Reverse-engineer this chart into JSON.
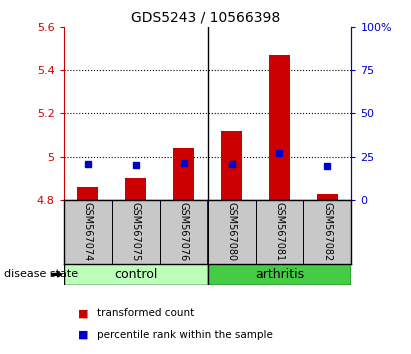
{
  "title": "GDS5243 / 10566398",
  "samples": [
    "GSM567074",
    "GSM567075",
    "GSM567076",
    "GSM567080",
    "GSM567081",
    "GSM567082"
  ],
  "groups": [
    "control",
    "control",
    "control",
    "arthritis",
    "arthritis",
    "arthritis"
  ],
  "transformed_count": [
    4.86,
    4.9,
    5.04,
    5.12,
    5.47,
    4.83
  ],
  "percentile_rank": [
    20.5,
    20.0,
    21.5,
    20.5,
    27.0,
    19.5
  ],
  "bar_bottom": 4.8,
  "left_ylim": [
    4.8,
    5.6
  ],
  "right_ylim": [
    0,
    100
  ],
  "left_yticks": [
    4.8,
    5.0,
    5.2,
    5.4,
    5.6
  ],
  "right_yticks": [
    0,
    25,
    50,
    75,
    100
  ],
  "left_ytick_labels": [
    "4.8",
    "5",
    "5.2",
    "5.4",
    "5.6"
  ],
  "right_ytick_labels": [
    "0",
    "25",
    "50",
    "75",
    "100%"
  ],
  "bar_color": "#cc0000",
  "dot_color": "#0000cc",
  "control_color": "#bbffbb",
  "arthritis_color": "#44cc44",
  "sample_label_bg": "#c8c8c8",
  "legend_label_red": "transformed count",
  "legend_label_blue": "percentile rank within the sample",
  "disease_state_label": "disease state"
}
